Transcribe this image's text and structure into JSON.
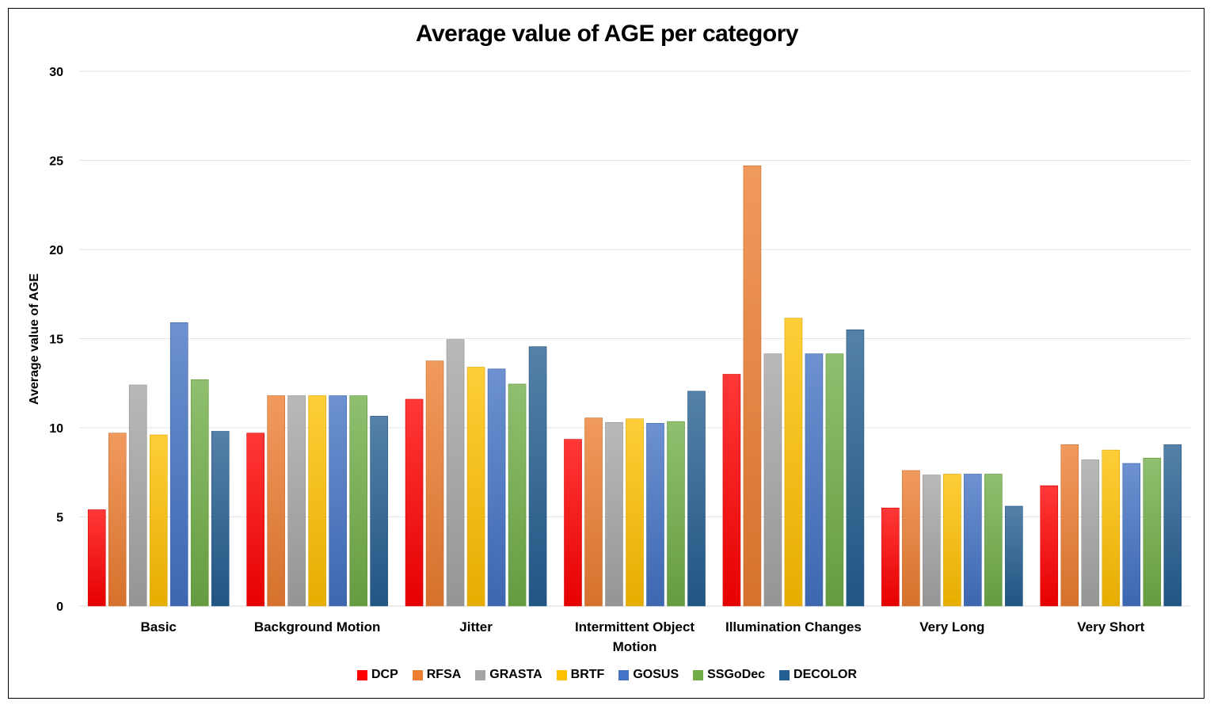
{
  "chart_data": {
    "type": "bar",
    "title": "Average value of AGE per category",
    "xlabel": "",
    "ylabel": "Average value of AGE",
    "ylim": [
      0,
      30
    ],
    "yticks": [
      "0",
      "5",
      "10",
      "15",
      "20",
      "25",
      "30"
    ],
    "grid": true,
    "legend_position": "bottom",
    "categories": [
      [
        "Basic"
      ],
      [
        "Background Motion"
      ],
      [
        "Jitter"
      ],
      [
        "Intermittent Object",
        "Motion"
      ],
      [
        "Illumination Changes"
      ],
      [
        "Very Long"
      ],
      [
        "Very Short"
      ]
    ],
    "series": [
      {
        "name": "DCP",
        "color": "#FF0000",
        "values": [
          5.4,
          9.7,
          11.6,
          9.35,
          13.0,
          5.5,
          6.75
        ]
      },
      {
        "name": "RFSA",
        "color": "#ED7D31",
        "values": [
          9.7,
          11.8,
          13.75,
          10.55,
          24.7,
          7.6,
          9.05
        ]
      },
      {
        "name": "GRASTA",
        "color": "#A5A5A5",
        "values": [
          12.4,
          11.8,
          14.95,
          10.3,
          14.15,
          7.35,
          8.2
        ]
      },
      {
        "name": "BRTF",
        "color": "#FFC000",
        "values": [
          9.6,
          11.8,
          13.4,
          10.5,
          16.15,
          7.4,
          8.75
        ]
      },
      {
        "name": "GOSUS",
        "color": "#4472C4",
        "values": [
          15.9,
          11.8,
          13.3,
          10.25,
          14.15,
          7.4,
          8.0
        ]
      },
      {
        "name": "SSGoDec",
        "color": "#70AD47",
        "values": [
          12.7,
          11.8,
          12.45,
          10.35,
          14.15,
          7.4,
          8.3
        ]
      },
      {
        "name": "DECOLOR",
        "color": "#255E91",
        "values": [
          9.8,
          10.65,
          14.55,
          12.05,
          15.5,
          5.6,
          9.05
        ]
      }
    ]
  }
}
